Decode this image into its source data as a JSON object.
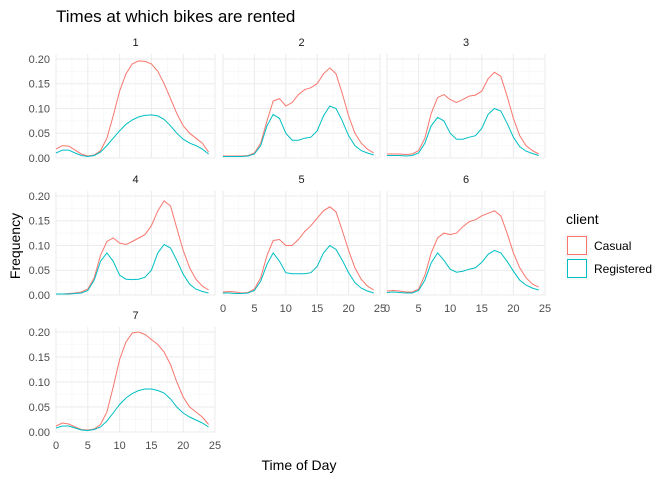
{
  "chart_data": {
    "type": "line",
    "title": "Times at which bikes are rented",
    "xlabel": "Time of Day",
    "ylabel": "Frequency",
    "xlim": [
      0,
      24
    ],
    "ylim": [
      0,
      0.21
    ],
    "x_ticks": [
      0,
      5,
      10,
      15,
      20,
      25
    ],
    "y_ticks": [
      0.0,
      0.05,
      0.1,
      0.15,
      0.2
    ],
    "y_tick_labels": [
      "0.00",
      "0.05",
      "0.10",
      "0.15",
      "0.20"
    ],
    "grid": true,
    "legend": {
      "title": "client",
      "position": "right"
    },
    "series_colors": {
      "Casual": "#F8766D",
      "Registered": "#00BFC4"
    },
    "x": [
      0,
      1,
      2,
      3,
      4,
      5,
      6,
      7,
      8,
      9,
      10,
      11,
      12,
      13,
      14,
      15,
      16,
      17,
      18,
      19,
      20,
      21,
      22,
      23,
      24
    ],
    "panels": [
      {
        "label": "1",
        "series": [
          {
            "name": "Casual",
            "values": [
              0.018,
              0.025,
              0.024,
              0.016,
              0.008,
              0.004,
              0.006,
              0.015,
              0.04,
              0.085,
              0.135,
              0.17,
              0.19,
              0.196,
              0.195,
              0.19,
              0.175,
              0.15,
              0.12,
              0.09,
              0.065,
              0.05,
              0.04,
              0.03,
              0.012
            ]
          },
          {
            "name": "Registered",
            "values": [
              0.01,
              0.016,
              0.016,
              0.01,
              0.005,
              0.003,
              0.005,
              0.012,
              0.025,
              0.04,
              0.055,
              0.068,
              0.077,
              0.083,
              0.086,
              0.087,
              0.085,
              0.078,
              0.065,
              0.05,
              0.038,
              0.03,
              0.025,
              0.018,
              0.008
            ]
          }
        ]
      },
      {
        "label": "2",
        "series": [
          {
            "name": "Casual",
            "values": [
              0.004,
              0.004,
              0.004,
              0.004,
              0.005,
              0.01,
              0.03,
              0.075,
              0.115,
              0.12,
              0.105,
              0.112,
              0.128,
              0.138,
              0.142,
              0.15,
              0.17,
              0.182,
              0.17,
              0.13,
              0.085,
              0.05,
              0.03,
              0.018,
              0.01
            ]
          },
          {
            "name": "Registered",
            "values": [
              0.003,
              0.003,
              0.003,
              0.003,
              0.004,
              0.008,
              0.025,
              0.065,
              0.088,
              0.08,
              0.05,
              0.036,
              0.036,
              0.04,
              0.042,
              0.055,
              0.085,
              0.105,
              0.1,
              0.075,
              0.045,
              0.025,
              0.015,
              0.01,
              0.006
            ]
          }
        ]
      },
      {
        "label": "3",
        "series": [
          {
            "name": "Casual",
            "values": [
              0.008,
              0.008,
              0.008,
              0.007,
              0.008,
              0.015,
              0.04,
              0.09,
              0.122,
              0.128,
              0.118,
              0.112,
              0.118,
              0.125,
              0.127,
              0.135,
              0.16,
              0.173,
              0.165,
              0.125,
              0.08,
              0.045,
              0.025,
              0.015,
              0.008
            ]
          },
          {
            "name": "Registered",
            "values": [
              0.005,
              0.005,
              0.005,
              0.004,
              0.005,
              0.01,
              0.03,
              0.065,
              0.082,
              0.075,
              0.05,
              0.038,
              0.038,
              0.042,
              0.045,
              0.06,
              0.088,
              0.1,
              0.095,
              0.07,
              0.042,
              0.023,
              0.014,
              0.009,
              0.005
            ]
          }
        ]
      },
      {
        "label": "4",
        "series": [
          {
            "name": "Casual",
            "values": [
              0.002,
              0.002,
              0.003,
              0.004,
              0.006,
              0.012,
              0.035,
              0.08,
              0.108,
              0.115,
              0.105,
              0.102,
              0.108,
              0.115,
              0.122,
              0.14,
              0.17,
              0.19,
              0.18,
              0.135,
              0.09,
              0.055,
              0.032,
              0.018,
              0.01
            ]
          },
          {
            "name": "Registered",
            "values": [
              0.002,
              0.002,
              0.002,
              0.003,
              0.004,
              0.009,
              0.03,
              0.068,
              0.085,
              0.068,
              0.04,
              0.032,
              0.031,
              0.032,
              0.036,
              0.05,
              0.085,
              0.102,
              0.095,
              0.07,
              0.042,
              0.022,
              0.012,
              0.007,
              0.004
            ]
          }
        ]
      },
      {
        "label": "5",
        "series": [
          {
            "name": "Casual",
            "values": [
              0.006,
              0.007,
              0.006,
              0.004,
              0.005,
              0.012,
              0.035,
              0.08,
              0.11,
              0.112,
              0.1,
              0.1,
              0.112,
              0.128,
              0.14,
              0.155,
              0.17,
              0.178,
              0.168,
              0.13,
              0.09,
              0.055,
              0.032,
              0.018,
              0.01
            ]
          },
          {
            "name": "Registered",
            "values": [
              0.004,
              0.004,
              0.003,
              0.003,
              0.004,
              0.009,
              0.028,
              0.062,
              0.085,
              0.068,
              0.045,
              0.043,
              0.043,
              0.043,
              0.045,
              0.058,
              0.085,
              0.1,
              0.092,
              0.07,
              0.045,
              0.025,
              0.014,
              0.008,
              0.004
            ]
          }
        ]
      },
      {
        "label": "6",
        "series": [
          {
            "name": "Casual",
            "values": [
              0.008,
              0.009,
              0.008,
              0.006,
              0.006,
              0.012,
              0.04,
              0.085,
              0.115,
              0.125,
              0.122,
              0.125,
              0.138,
              0.148,
              0.152,
              0.16,
              0.165,
              0.17,
              0.16,
              0.125,
              0.085,
              0.055,
              0.035,
              0.022,
              0.016
            ]
          },
          {
            "name": "Registered",
            "values": [
              0.005,
              0.006,
              0.005,
              0.004,
              0.004,
              0.009,
              0.03,
              0.065,
              0.085,
              0.07,
              0.052,
              0.046,
              0.048,
              0.052,
              0.055,
              0.066,
              0.082,
              0.09,
              0.085,
              0.068,
              0.048,
              0.03,
              0.02,
              0.014,
              0.01
            ]
          }
        ]
      },
      {
        "label": "7",
        "series": [
          {
            "name": "Casual",
            "values": [
              0.012,
              0.018,
              0.016,
              0.01,
              0.005,
              0.004,
              0.006,
              0.015,
              0.04,
              0.09,
              0.145,
              0.18,
              0.198,
              0.2,
              0.195,
              0.185,
              0.175,
              0.16,
              0.135,
              0.1,
              0.07,
              0.05,
              0.04,
              0.03,
              0.015
            ]
          },
          {
            "name": "Registered",
            "values": [
              0.008,
              0.012,
              0.012,
              0.008,
              0.004,
              0.003,
              0.005,
              0.01,
              0.022,
              0.038,
              0.055,
              0.068,
              0.077,
              0.083,
              0.086,
              0.086,
              0.083,
              0.078,
              0.066,
              0.05,
              0.038,
              0.03,
              0.024,
              0.018,
              0.01
            ]
          }
        ]
      }
    ]
  }
}
